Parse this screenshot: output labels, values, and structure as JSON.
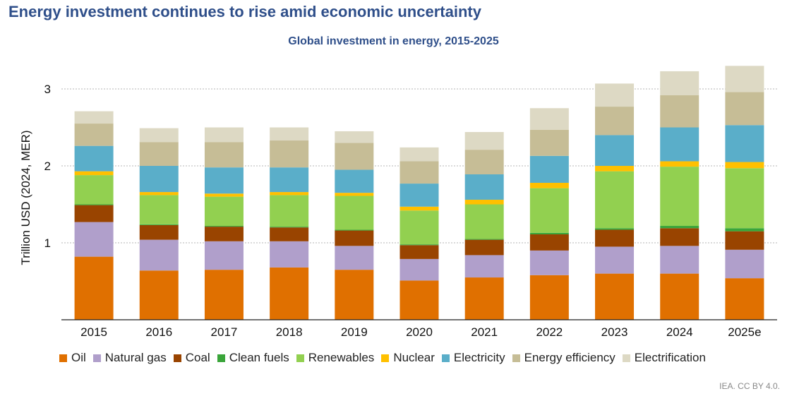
{
  "header": {
    "title": "Energy investment continues to rise amid economic uncertainty",
    "subtitle": "Global investment in energy, 2015-2025"
  },
  "credit": "IEA. CC BY 4.0.",
  "chart_data": {
    "type": "bar",
    "stacked": true,
    "categories": [
      "2015",
      "2016",
      "2017",
      "2018",
      "2019",
      "2020",
      "2021",
      "2022",
      "2023",
      "2024",
      "2025e"
    ],
    "ylabel": "Trillion USD (2024, MER)",
    "xlabel": "",
    "ylim": [
      0,
      3.4
    ],
    "yticks": [
      1,
      2,
      3
    ],
    "grid": true,
    "legend_position": "bottom",
    "series": [
      {
        "name": "Oil",
        "color": "#e07000",
        "values": [
          0.82,
          0.64,
          0.65,
          0.68,
          0.65,
          0.51,
          0.55,
          0.58,
          0.6,
          0.6,
          0.54
        ]
      },
      {
        "name": "Natural gas",
        "color": "#b09fcb",
        "values": [
          0.45,
          0.4,
          0.37,
          0.34,
          0.31,
          0.28,
          0.29,
          0.32,
          0.35,
          0.36,
          0.37
        ]
      },
      {
        "name": "Coal",
        "color": "#994400",
        "values": [
          0.22,
          0.19,
          0.19,
          0.18,
          0.2,
          0.18,
          0.2,
          0.21,
          0.22,
          0.23,
          0.24
        ]
      },
      {
        "name": "Clean fuels",
        "color": "#3aa53a",
        "values": [
          0.01,
          0.01,
          0.01,
          0.01,
          0.01,
          0.01,
          0.01,
          0.02,
          0.02,
          0.03,
          0.04
        ]
      },
      {
        "name": "Renewables",
        "color": "#92d050",
        "values": [
          0.38,
          0.38,
          0.38,
          0.41,
          0.44,
          0.44,
          0.45,
          0.58,
          0.74,
          0.77,
          0.78
        ]
      },
      {
        "name": "Nuclear",
        "color": "#ffc000",
        "values": [
          0.05,
          0.04,
          0.04,
          0.04,
          0.04,
          0.05,
          0.06,
          0.07,
          0.07,
          0.07,
          0.08
        ]
      },
      {
        "name": "Electricity",
        "color": "#5aaec9",
        "values": [
          0.33,
          0.34,
          0.34,
          0.32,
          0.3,
          0.3,
          0.33,
          0.35,
          0.4,
          0.44,
          0.48
        ]
      },
      {
        "name": "Energy efficiency",
        "color": "#c6bd96",
        "values": [
          0.29,
          0.31,
          0.33,
          0.35,
          0.35,
          0.29,
          0.32,
          0.34,
          0.37,
          0.42,
          0.43
        ]
      },
      {
        "name": "Electrification",
        "color": "#ddd9c4",
        "values": [
          0.16,
          0.18,
          0.19,
          0.17,
          0.15,
          0.18,
          0.23,
          0.28,
          0.3,
          0.31,
          0.34
        ]
      }
    ]
  }
}
